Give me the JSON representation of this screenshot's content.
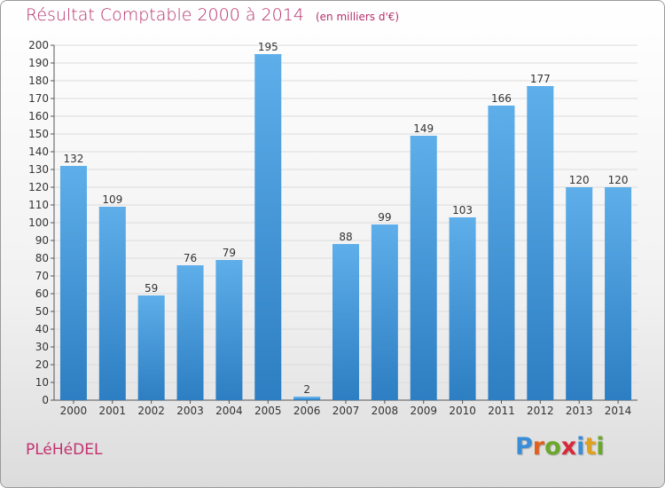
{
  "header": {
    "title": "Résultat Comptable 2000 à 2014",
    "subtitle": "(en milliers d'€)"
  },
  "footer": {
    "commune": "PLéHéDEL",
    "logo_letters": [
      "P",
      "r",
      "o",
      "x",
      "i",
      "t",
      "i"
    ],
    "logo_colors": [
      "#3a8ed8",
      "#e0601f",
      "#6aa82a",
      "#d8283a",
      "#3a8ed8",
      "#e0a020",
      "#6aa82a"
    ]
  },
  "colors": {
    "bar_light": "#5eaeea",
    "bar_dark": "#2d7ec2",
    "grid": "#dcdcdc",
    "axis": "#555555",
    "title": "#b5306a"
  },
  "chart_data": {
    "type": "bar",
    "categories": [
      "2000",
      "2001",
      "2002",
      "2003",
      "2004",
      "2005",
      "2006",
      "2007",
      "2008",
      "2009",
      "2010",
      "2011",
      "2012",
      "2013",
      "2014"
    ],
    "values": [
      132,
      109,
      59,
      76,
      79,
      195,
      2,
      88,
      99,
      149,
      103,
      166,
      177,
      120,
      120
    ],
    "title": "Résultat Comptable 2000 à 2014",
    "xlabel": "",
    "ylabel": "",
    "ylim": [
      0,
      200
    ],
    "ytick_step": 10,
    "grid": true,
    "data_labels": true
  }
}
